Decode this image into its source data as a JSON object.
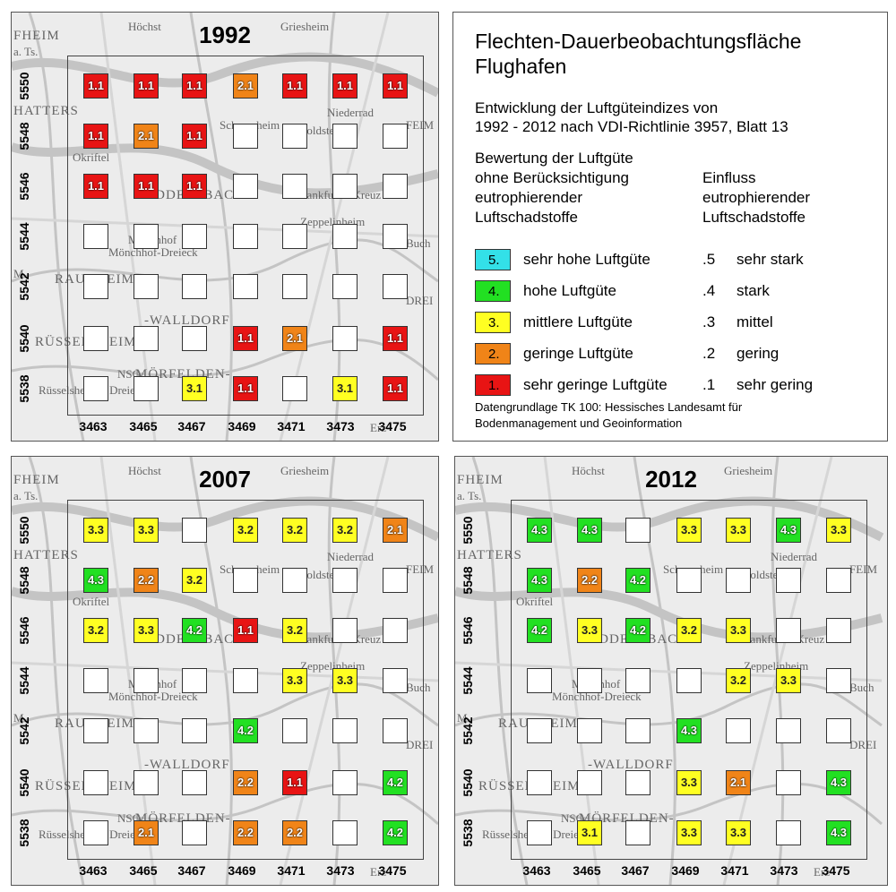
{
  "colors": {
    "5": "#33e0e8",
    "4": "#22e022",
    "3": "#ffff22",
    "2": "#f08418",
    "1": "#e81414"
  },
  "x_labels": [
    "3463",
    "3465",
    "3467",
    "3469",
    "3471",
    "3473",
    "3475"
  ],
  "y_labels": [
    "5550",
    "5548",
    "5546",
    "5544",
    "5542",
    "5540",
    "5538"
  ],
  "place_names": [
    "FHEIM",
    "a. Ts.",
    "Höchst",
    "Griesheim",
    "HATTERS",
    "Schwanheim",
    "Goldstein",
    "Niederrad",
    "Okriftel",
    "EDDERSBACH",
    "Mönchhof",
    "Mönchhof-Dreieck",
    "Frankfurter Kreuz",
    "Zeppelinheim",
    "RAUNHEIM",
    "-WALLDORF",
    "RÜSSELSHEIM",
    "MÖRFELDEN-",
    "NSG",
    "Rüsselsheimer Dreieck",
    "Erz-",
    "FEIM",
    "M.",
    "DREI",
    "Buch"
  ],
  "maps": [
    {
      "year": "1992",
      "cells": [
        [
          "1.1",
          "1.1",
          "1.1",
          "2.1",
          "1.1",
          "1.1",
          "1.1"
        ],
        [
          "1.1",
          "2.1",
          "1.1",
          "",
          "",
          "",
          ""
        ],
        [
          "1.1",
          "1.1",
          "1.1",
          "",
          "",
          "",
          ""
        ],
        [
          "",
          "",
          "",
          "",
          "",
          "",
          ""
        ],
        [
          "",
          "",
          "",
          "",
          "",
          "",
          ""
        ],
        [
          "",
          "",
          "",
          "1.1",
          "2.1",
          "",
          "1.1"
        ],
        [
          "",
          "",
          "3.1",
          "1.1",
          "",
          "3.1",
          "1.1"
        ]
      ]
    },
    {
      "year": "2007",
      "cells": [
        [
          "3.3",
          "3.3",
          "",
          "3.2",
          "3.2",
          "3.2",
          "2.1"
        ],
        [
          "4.3",
          "2.2",
          "3.2",
          "",
          "",
          "",
          ""
        ],
        [
          "3.2",
          "3.3",
          "4.2",
          "1.1",
          "3.2",
          "",
          ""
        ],
        [
          "",
          "",
          "",
          "",
          "3.3",
          "3.3",
          ""
        ],
        [
          "",
          "",
          "",
          "4.2",
          "",
          "",
          ""
        ],
        [
          "",
          "",
          "",
          "2.2",
          "1.1",
          "",
          "4.2"
        ],
        [
          "",
          "2.1",
          "",
          "2.2",
          "2.2",
          "",
          "4.2"
        ]
      ]
    },
    {
      "year": "2012",
      "cells": [
        [
          "4.3",
          "4.3",
          "",
          "3.3",
          "3.3",
          "4.3",
          "3.3"
        ],
        [
          "4.3",
          "2.2",
          "4.2",
          "",
          "",
          "",
          ""
        ],
        [
          "4.2",
          "3.3",
          "4.2",
          "3.2",
          "3.3",
          "",
          ""
        ],
        [
          "",
          "",
          "",
          "",
          "3.2",
          "3.3",
          ""
        ],
        [
          "",
          "",
          "",
          "4.3",
          "",
          "",
          ""
        ],
        [
          "",
          "",
          "",
          "3.3",
          "2.1",
          "",
          "4.3"
        ],
        [
          "",
          "3.1",
          "",
          "3.3",
          "3.3",
          "",
          "4.3"
        ]
      ]
    }
  ],
  "legend": {
    "title_line1": "Flechten-Dauerbeobachtungsfläche",
    "title_line2": "Flughafen",
    "sub_line1": "Entwicklung der Luftgüteindizes von",
    "sub_line2": "1992 - 2012 nach VDI-Richtlinie 3957, Blatt 13",
    "col1_line1": "Bewertung der Luftgüte",
    "col1_line2": "ohne Berücksichtigung",
    "col1_line3": "eutrophierender",
    "col1_line4": "Luftschadstoffe",
    "col2_line1": "Einfluss",
    "col2_line2": "eutrophierender",
    "col2_line3": "Luftschadstoffe",
    "rows": [
      {
        "class": "5",
        "swatch": "5.",
        "label": "sehr hohe Luftgüte",
        "code": ".5",
        "influence": "sehr stark"
      },
      {
        "class": "4",
        "swatch": "4.",
        "label": "hohe Luftgüte",
        "code": ".4",
        "influence": "stark"
      },
      {
        "class": "3",
        "swatch": "3.",
        "label": "mittlere Luftgüte",
        "code": ".3",
        "influence": "mittel"
      },
      {
        "class": "2",
        "swatch": "2.",
        "label": "geringe Luftgüte",
        "code": ".2",
        "influence": "gering"
      },
      {
        "class": "1",
        "swatch": "1.",
        "label": "sehr geringe Luftgüte",
        "code": ".1",
        "influence": "sehr gering"
      }
    ],
    "source_line1": "Datengrundlage TK 100: Hessisches Landesamt für",
    "source_line2": "Bodenmanagement und Geoinformation"
  }
}
